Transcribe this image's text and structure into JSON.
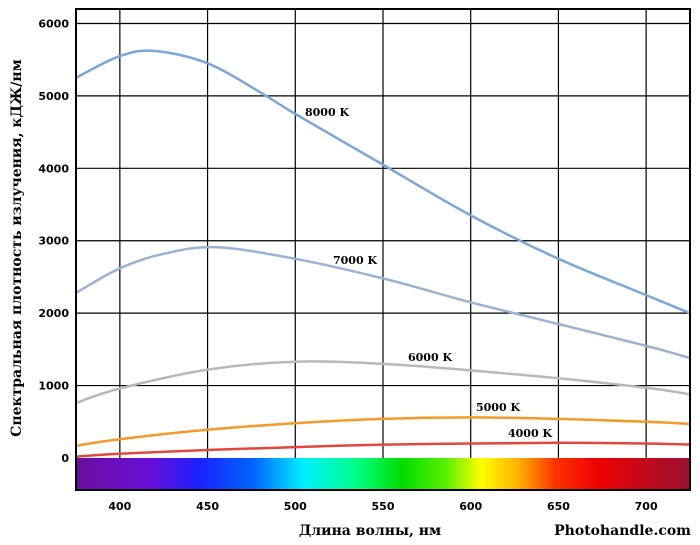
{
  "chart_data": {
    "type": "line",
    "xlabel": "Длина волны, нм",
    "ylabel": "Спектральная плотность излучения, кДЖ/нм",
    "watermark": "Photohandle.com",
    "xlim": [
      375,
      725
    ],
    "ylim": [
      0,
      6200
    ],
    "xticks": [
      400,
      450,
      500,
      550,
      600,
      650,
      700
    ],
    "yticks": [
      0,
      1000,
      2000,
      3000,
      4000,
      5000,
      6000
    ],
    "xtick_labels": [
      "400",
      "450",
      "500",
      "550",
      "600",
      "650",
      "700"
    ],
    "ytick_labels": [
      "0",
      "1000",
      "2000",
      "3000",
      "4000",
      "5000",
      "6000"
    ],
    "grid": true,
    "spectrum_bar": true,
    "series": [
      {
        "name": "8000 K",
        "color": "#7aa6d9",
        "x": [
          375,
          400,
          420,
          450,
          480,
          500,
          550,
          600,
          650,
          700,
          725
        ],
        "y": [
          5250,
          5550,
          5620,
          5450,
          5050,
          4750,
          4050,
          3350,
          2750,
          2250,
          2000
        ]
      },
      {
        "name": "7000 K",
        "color": "#9ab3cf",
        "x": [
          375,
          400,
          425,
          455,
          500,
          550,
          600,
          650,
          700,
          725
        ],
        "y": [
          2280,
          2620,
          2820,
          2910,
          2750,
          2480,
          2150,
          1850,
          1550,
          1380
        ]
      },
      {
        "name": "6000 K",
        "color": "#b8b8b8",
        "x": [
          375,
          400,
          450,
          500,
          550,
          600,
          650,
          700,
          725
        ],
        "y": [
          760,
          960,
          1220,
          1330,
          1300,
          1210,
          1100,
          970,
          880
        ]
      },
      {
        "name": "5000 K",
        "color": "#f39a2a",
        "x": [
          375,
          400,
          450,
          500,
          550,
          600,
          650,
          700,
          725
        ],
        "y": [
          170,
          260,
          390,
          480,
          540,
          560,
          540,
          500,
          470
        ]
      },
      {
        "name": "4000 K",
        "color": "#e0473f",
        "x": [
          375,
          400,
          450,
          500,
          550,
          600,
          650,
          700,
          725
        ],
        "y": [
          20,
          60,
          110,
          150,
          185,
          200,
          210,
          200,
          185
        ]
      }
    ]
  }
}
